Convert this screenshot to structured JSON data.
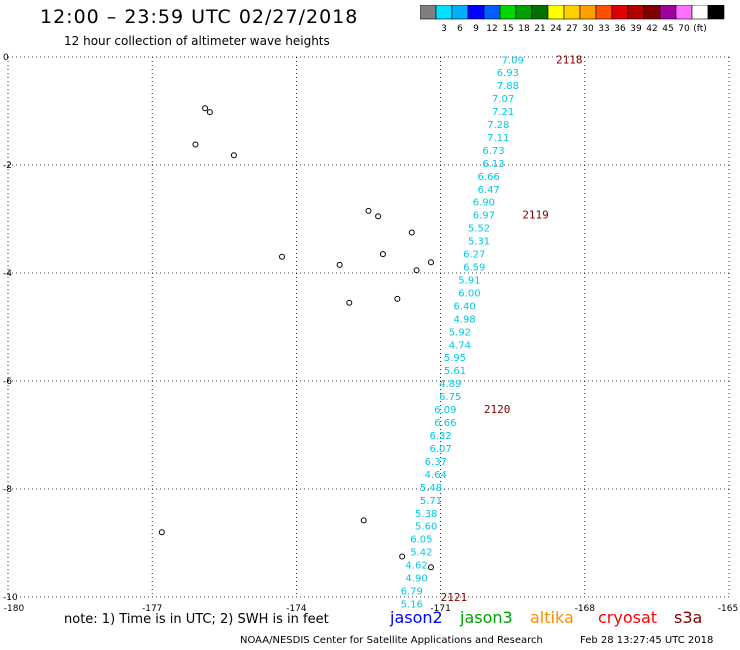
{
  "title": "12:00 – 23:59 UTC 02/27/2018",
  "subtitle": "12 hour collection of altimeter wave heights",
  "scale": {
    "colors": [
      "#7f7f7f",
      "#00e0ff",
      "#00b0ff",
      "#0000ff",
      "#0060ff",
      "#00d800",
      "#00a000",
      "#007000",
      "#ffff00",
      "#ffd000",
      "#ffa000",
      "#ff5000",
      "#e00000",
      "#b00000",
      "#800000",
      "#a000a0",
      "#ff70ff",
      "#ffffff",
      "#000000"
    ],
    "labels": [
      "3",
      "6",
      "9",
      "12",
      "15",
      "18",
      "21",
      "24",
      "27",
      "30",
      "33",
      "36",
      "39",
      "42",
      "45",
      "70",
      "(ft)"
    ]
  },
  "axes": {
    "x_ticks": [
      "-180",
      "-177",
      "-174",
      "-171",
      "-168",
      "-165"
    ],
    "y_ticks": [
      "0",
      "-2",
      "-4",
      "-6",
      "-8",
      "-10"
    ]
  },
  "chart_data": {
    "type": "scatter",
    "x_range": [
      -180,
      -165
    ],
    "y_range": [
      -10,
      0
    ],
    "track_color": "#00c8e8",
    "label_color": "#800000",
    "points": [
      {
        "lon": -169.5,
        "lat": -0.05,
        "swh": "7.09"
      },
      {
        "lon": -169.6,
        "lat": -0.28,
        "swh": "6.93"
      },
      {
        "lon": -169.6,
        "lat": -0.52,
        "swh": "7.88"
      },
      {
        "lon": -169.7,
        "lat": -0.76,
        "swh": "7.07"
      },
      {
        "lon": -169.7,
        "lat": -1.0,
        "swh": "7.21"
      },
      {
        "lon": -169.8,
        "lat": -1.24,
        "swh": "7.28"
      },
      {
        "lon": -169.8,
        "lat": -1.48,
        "swh": "7.11"
      },
      {
        "lon": -169.9,
        "lat": -1.72,
        "swh": "6.73"
      },
      {
        "lon": -169.9,
        "lat": -1.96,
        "swh": "6.13"
      },
      {
        "lon": -170.0,
        "lat": -2.2,
        "swh": "6.66"
      },
      {
        "lon": -170.0,
        "lat": -2.44,
        "swh": "6.47"
      },
      {
        "lon": -170.1,
        "lat": -2.68,
        "swh": "6.90"
      },
      {
        "lon": -170.1,
        "lat": -2.92,
        "swh": "6.97"
      },
      {
        "lon": -170.2,
        "lat": -3.16,
        "swh": "5.52"
      },
      {
        "lon": -170.2,
        "lat": -3.4,
        "swh": "5.31"
      },
      {
        "lon": -170.3,
        "lat": -3.64,
        "swh": "6.27"
      },
      {
        "lon": -170.3,
        "lat": -3.88,
        "swh": "6.59"
      },
      {
        "lon": -170.4,
        "lat": -4.12,
        "swh": "5.91"
      },
      {
        "lon": -170.4,
        "lat": -4.36,
        "swh": "6.00"
      },
      {
        "lon": -170.5,
        "lat": -4.6,
        "swh": "6.40"
      },
      {
        "lon": -170.5,
        "lat": -4.84,
        "swh": "4.98"
      },
      {
        "lon": -170.6,
        "lat": -5.08,
        "swh": "5.92"
      },
      {
        "lon": -170.6,
        "lat": -5.32,
        "swh": "4.74"
      },
      {
        "lon": -170.7,
        "lat": -5.56,
        "swh": "5.95"
      },
      {
        "lon": -170.7,
        "lat": -5.8,
        "swh": "5.61"
      },
      {
        "lon": -170.8,
        "lat": -6.04,
        "swh": "4.89"
      },
      {
        "lon": -170.8,
        "lat": -6.28,
        "swh": "6.75"
      },
      {
        "lon": -170.9,
        "lat": -6.52,
        "swh": "6.09"
      },
      {
        "lon": -170.9,
        "lat": -6.76,
        "swh": "6.66"
      },
      {
        "lon": -171.0,
        "lat": -7.0,
        "swh": "6.32"
      },
      {
        "lon": -171.0,
        "lat": -7.24,
        "swh": "6.07"
      },
      {
        "lon": -171.1,
        "lat": -7.48,
        "swh": "6.37"
      },
      {
        "lon": -171.1,
        "lat": -7.72,
        "swh": "4.64"
      },
      {
        "lon": -171.2,
        "lat": -7.96,
        "swh": "5.48"
      },
      {
        "lon": -171.2,
        "lat": -8.2,
        "swh": "5.71"
      },
      {
        "lon": -171.3,
        "lat": -8.44,
        "swh": "5.38"
      },
      {
        "lon": -171.3,
        "lat": -8.68,
        "swh": "5.60"
      },
      {
        "lon": -171.4,
        "lat": -8.92,
        "swh": "6.05"
      },
      {
        "lon": -171.4,
        "lat": -9.16,
        "swh": "5.42"
      },
      {
        "lon": -171.5,
        "lat": -9.4,
        "swh": "4.62"
      },
      {
        "lon": -171.5,
        "lat": -9.64,
        "swh": "4.90"
      },
      {
        "lon": -171.6,
        "lat": -9.88,
        "swh": "6.79"
      },
      {
        "lon": -171.6,
        "lat": -10.12,
        "swh": "5.16"
      }
    ],
    "time_labels": [
      {
        "lon": -168.6,
        "lat": -0.05,
        "text": "2118"
      },
      {
        "lon": -169.3,
        "lat": -2.92,
        "text": "2119"
      },
      {
        "lon": -170.1,
        "lat": -6.52,
        "text": "2120"
      },
      {
        "lon": -171.0,
        "lat": -10.0,
        "text": "2121"
      }
    ],
    "islands": [
      {
        "lon": -175.9,
        "lat": -0.95
      },
      {
        "lon": -175.8,
        "lat": -1.02
      },
      {
        "lon": -176.1,
        "lat": -1.62
      },
      {
        "lon": -175.3,
        "lat": -1.82
      },
      {
        "lon": -172.5,
        "lat": -2.85
      },
      {
        "lon": -172.3,
        "lat": -2.95
      },
      {
        "lon": -171.6,
        "lat": -3.25
      },
      {
        "lon": -174.3,
        "lat": -3.7
      },
      {
        "lon": -172.2,
        "lat": -3.65
      },
      {
        "lon": -171.2,
        "lat": -3.8
      },
      {
        "lon": -171.5,
        "lat": -3.95
      },
      {
        "lon": -173.1,
        "lat": -3.85
      },
      {
        "lon": -172.9,
        "lat": -4.55
      },
      {
        "lon": -171.9,
        "lat": -4.48
      },
      {
        "lon": -172.6,
        "lat": -8.58
      },
      {
        "lon": -171.8,
        "lat": -9.25
      },
      {
        "lon": -171.2,
        "lat": -9.45
      },
      {
        "lon": -176.8,
        "lat": -8.8
      }
    ]
  },
  "note": "note:  1) Time is in UTC;  2) SWH is in feet",
  "satellites": [
    {
      "name": "jason2",
      "color": "#0000ff"
    },
    {
      "name": "jason3",
      "color": "#00a000"
    },
    {
      "name": "altika",
      "color": "#ff8c00"
    },
    {
      "name": "cryosat",
      "color": "#ff0000"
    },
    {
      "name": "s3a",
      "color": "#800000"
    }
  ],
  "credit": "NOAA/NESDIS Center for Satellite Applications and Research",
  "timestamp": "Feb 28 13:27:45 UTC 2018"
}
